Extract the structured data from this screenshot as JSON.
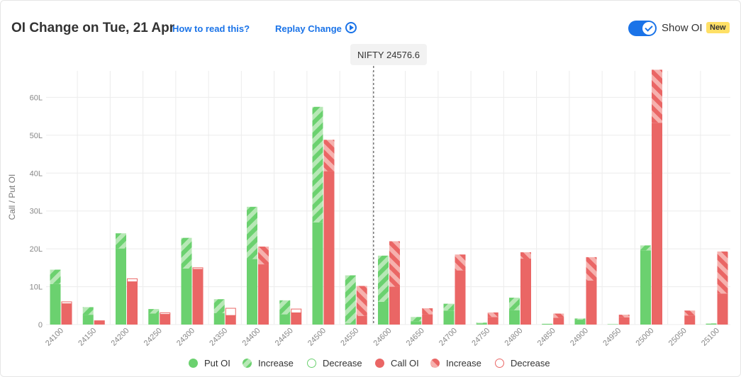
{
  "header": {
    "title": "OI Change on Tue, 21 Apr",
    "how_to_read": "How to read this?",
    "replay": "Replay Change",
    "show_oi_label": "Show OI",
    "new_badge": "New",
    "show_oi_on": true
  },
  "spot": {
    "label": "NIFTY 24576.6",
    "value": 24576.6
  },
  "colors": {
    "put": "#6bd16f",
    "put_light": "#b7e8b6",
    "call": "#ea6665",
    "call_light": "#f6b1ae",
    "grid": "#ececec",
    "axis_text": "#888888"
  },
  "chart_data": {
    "type": "bar",
    "ylabel": "Call / Put OI",
    "ylim": [
      0,
      67
    ],
    "yticks": [
      0,
      10,
      20,
      30,
      40,
      50,
      60
    ],
    "ytick_labels": [
      "0",
      "10L",
      "20L",
      "30L",
      "40L",
      "50L",
      "60L"
    ],
    "units": "lakh",
    "categories": [
      "24100",
      "24150",
      "24200",
      "24250",
      "24300",
      "24350",
      "24400",
      "24450",
      "24500",
      "24550",
      "24600",
      "24650",
      "24700",
      "24750",
      "24800",
      "24850",
      "24900",
      "24950",
      "25000",
      "25050",
      "25100"
    ],
    "series": [
      {
        "name": "Put OI",
        "values": [
          10.7,
          2.6,
          20.1,
          2.9,
          14.8,
          3.0,
          17.3,
          2.7,
          27.0,
          0.3,
          6.0,
          0.9,
          3.7,
          0.3,
          3.8,
          0.2,
          1.3,
          0.1,
          19.6,
          0.0,
          0.2
        ]
      },
      {
        "name": "Increase",
        "values": [
          3.8,
          2.0,
          4.0,
          1.2,
          8.1,
          3.7,
          13.8,
          3.7,
          30.5,
          12.7,
          12.2,
          1.1,
          1.8,
          0.2,
          3.3,
          0.0,
          0.3,
          0.0,
          1.3,
          0.0,
          0.1
        ]
      },
      {
        "name": "Decrease",
        "values": [
          0,
          0,
          0,
          0,
          0,
          0,
          0,
          0,
          0,
          0,
          0,
          0,
          0,
          0,
          0,
          0,
          0,
          0,
          0,
          0,
          0
        ]
      },
      {
        "name": "Call OI",
        "values": [
          5.5,
          1.1,
          11.3,
          2.7,
          14.6,
          2.4,
          15.9,
          3.1,
          40.5,
          2.3,
          10.0,
          2.7,
          14.3,
          2.0,
          17.4,
          1.8,
          11.6,
          1.9,
          53.3,
          2.4,
          8.2
        ]
      },
      {
        "name": "Increase",
        "values": [
          0,
          0,
          0,
          0,
          0,
          0,
          4.7,
          0,
          8.3,
          7.9,
          12.0,
          1.6,
          4.2,
          1.2,
          1.7,
          1.1,
          6.2,
          0.7,
          14.0,
          1.3,
          11.1
        ]
      },
      {
        "name": "Decrease",
        "values": [
          0.5,
          0,
          0.8,
          0.4,
          0.4,
          1.9,
          0,
          1.0,
          0,
          0,
          0,
          0,
          0,
          0,
          0,
          0,
          0,
          0,
          0,
          0,
          0
        ]
      }
    ],
    "legend_position": "bottom",
    "grid": true
  }
}
